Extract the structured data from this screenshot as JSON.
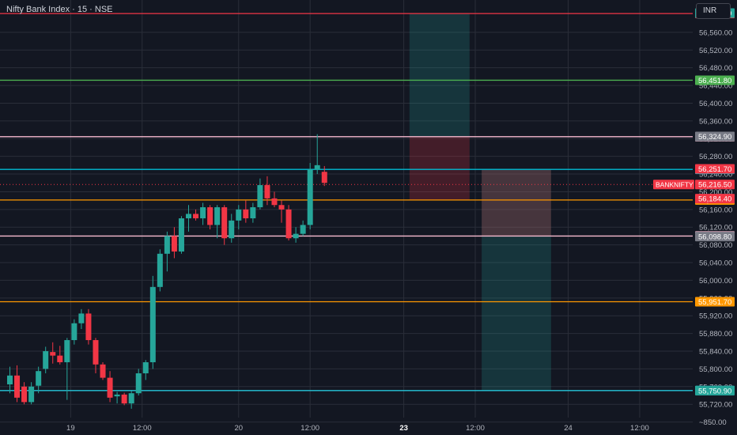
{
  "header": {
    "title": "Nifty Bank Index · 15 · NSE",
    "currency": "INR"
  },
  "colors": {
    "background": "#131722",
    "grid": "#2a2e39",
    "up": "#26a69a",
    "down": "#f23645",
    "axis_text": "#b2b5be"
  },
  "chart_data": {
    "type": "candlestick",
    "symbol": "BANKNIFTY",
    "y_axis_ticks": [
      "56,560.00",
      "56,520.00",
      "56,480.00",
      "56,440.00",
      "56,400.00",
      "56,360.00",
      "56,320.00",
      "56,280.00",
      "56,240.00",
      "56,200.00",
      "56,160.00",
      "56,120.00",
      "56,080.00",
      "56,040.00",
      "56,000.00",
      "55,960.00",
      "55,920.00",
      "55,880.00",
      "55,840.00",
      "55,800.00",
      "55,760.00",
      "55,720.00",
      "~850.00"
    ],
    "ylim": [
      55690,
      56633
    ],
    "x_axis_ticks": [
      {
        "label": "19",
        "idx": 8.5,
        "bold": false
      },
      {
        "label": "12:00",
        "idx": 18.5,
        "bold": false
      },
      {
        "label": "20",
        "idx": 32,
        "bold": false
      },
      {
        "label": "12:00",
        "idx": 42,
        "bold": false
      },
      {
        "label": "23",
        "idx": 55.1,
        "bold": true
      },
      {
        "label": "12:00",
        "idx": 65.1,
        "bold": false
      },
      {
        "label": "24",
        "idx": 78.1,
        "bold": false
      },
      {
        "label": "12:00",
        "idx": 88.1,
        "bold": false
      }
    ],
    "candles": [
      {
        "o": 55765,
        "h": 55805,
        "l": 55745,
        "c": 55785
      },
      {
        "o": 55785,
        "h": 55808,
        "l": 55725,
        "c": 55735
      },
      {
        "o": 55760,
        "h": 55770,
        "l": 55720,
        "c": 55725
      },
      {
        "o": 55725,
        "h": 55770,
        "l": 55720,
        "c": 55760
      },
      {
        "o": 55762,
        "h": 55805,
        "l": 55745,
        "c": 55795
      },
      {
        "o": 55800,
        "h": 55850,
        "l": 55790,
        "c": 55840
      },
      {
        "o": 55838,
        "h": 55860,
        "l": 55812,
        "c": 55830
      },
      {
        "o": 55830,
        "h": 55852,
        "l": 55810,
        "c": 55815
      },
      {
        "o": 55815,
        "h": 55870,
        "l": 55730,
        "c": 55865
      },
      {
        "o": 55865,
        "h": 55912,
        "l": 55855,
        "c": 55903
      },
      {
        "o": 55903,
        "h": 55935,
        "l": 55890,
        "c": 55925
      },
      {
        "o": 55925,
        "h": 55935,
        "l": 55855,
        "c": 55865
      },
      {
        "o": 55865,
        "h": 55870,
        "l": 55790,
        "c": 55810
      },
      {
        "o": 55810,
        "h": 55815,
        "l": 55775,
        "c": 55780
      },
      {
        "o": 55780,
        "h": 55795,
        "l": 55725,
        "c": 55735
      },
      {
        "o": 55738,
        "h": 55748,
        "l": 55722,
        "c": 55742
      },
      {
        "o": 55742,
        "h": 55746,
        "l": 55718,
        "c": 55722
      },
      {
        "o": 55722,
        "h": 55750,
        "l": 55710,
        "c": 55745
      },
      {
        "o": 55745,
        "h": 55800,
        "l": 55740,
        "c": 55790
      },
      {
        "o": 55790,
        "h": 55820,
        "l": 55775,
        "c": 55815
      },
      {
        "o": 55815,
        "h": 56010,
        "l": 55800,
        "c": 55985
      },
      {
        "o": 55985,
        "h": 56070,
        "l": 55975,
        "c": 56060
      },
      {
        "o": 56060,
        "h": 56110,
        "l": 56020,
        "c": 56100
      },
      {
        "o": 56100,
        "h": 56120,
        "l": 56050,
        "c": 56065
      },
      {
        "o": 56065,
        "h": 56145,
        "l": 56060,
        "c": 56140
      },
      {
        "o": 56140,
        "h": 56170,
        "l": 56110,
        "c": 56150
      },
      {
        "o": 56150,
        "h": 56160,
        "l": 56135,
        "c": 56140
      },
      {
        "o": 56140,
        "h": 56175,
        "l": 56125,
        "c": 56165
      },
      {
        "o": 56165,
        "h": 56170,
        "l": 56115,
        "c": 56125
      },
      {
        "o": 56125,
        "h": 56170,
        "l": 56095,
        "c": 56165
      },
      {
        "o": 56165,
        "h": 56170,
        "l": 56080,
        "c": 56095
      },
      {
        "o": 56095,
        "h": 56150,
        "l": 56085,
        "c": 56135
      },
      {
        "o": 56135,
        "h": 56170,
        "l": 56115,
        "c": 56160
      },
      {
        "o": 56160,
        "h": 56180,
        "l": 56130,
        "c": 56140
      },
      {
        "o": 56140,
        "h": 56175,
        "l": 56130,
        "c": 56165
      },
      {
        "o": 56165,
        "h": 56230,
        "l": 56160,
        "c": 56215
      },
      {
        "o": 56215,
        "h": 56235,
        "l": 56170,
        "c": 56185
      },
      {
        "o": 56185,
        "h": 56200,
        "l": 56165,
        "c": 56170
      },
      {
        "o": 56170,
        "h": 56180,
        "l": 56130,
        "c": 56160
      },
      {
        "o": 56160,
        "h": 56170,
        "l": 56090,
        "c": 56095
      },
      {
        "o": 56095,
        "h": 56120,
        "l": 56085,
        "c": 56105
      },
      {
        "o": 56105,
        "h": 56135,
        "l": 56100,
        "c": 56125
      },
      {
        "o": 56125,
        "h": 56265,
        "l": 56115,
        "c": 56250
      },
      {
        "o": 56250,
        "h": 56330,
        "l": 56240,
        "c": 56260
      },
      {
        "o": 56245,
        "h": 56258,
        "l": 56213,
        "c": 56220
      }
    ],
    "levels": [
      {
        "label": "56,602.45",
        "value": 56602.45,
        "line": "#f23645",
        "tag": "#f23645"
      },
      {
        "label": "56,451.80",
        "value": 56451.8,
        "line": "#4caf50",
        "tag": "#4caf50"
      },
      {
        "label": "56,324.35",
        "value": 56324.35,
        "line": "#f8bbd0",
        "tag": "#f8bbd0"
      },
      {
        "label": "56,250.50",
        "value": 56250.5,
        "line": "#00bcd4",
        "tag": "#00bcd4"
      },
      {
        "label": "56,181.40",
        "value": 56181.4,
        "line": "#ff9800",
        "tag": "#ff9800"
      },
      {
        "label": "56,100.00",
        "value": 56100.0,
        "line": "#f8bbd0",
        "tag": "#f8bbd0"
      },
      {
        "label": "55,951.70",
        "value": 55951.7,
        "line": "#ff9800",
        "tag": "#ff9800"
      },
      {
        "label": "55,751.10",
        "value": 55751.1,
        "line": "#26c6da",
        "tag": "#26c6da"
      }
    ],
    "price_tags": [
      {
        "label": "56,603.50",
        "value": 56603.5,
        "color": "#26a69a"
      },
      {
        "label": "56,324.90",
        "value": 56324.9,
        "color": "#787b86"
      },
      {
        "label": "56,251.70",
        "value": 56251.7,
        "color": "#f23645"
      },
      {
        "label": "56,216.50",
        "value": 56216.5,
        "color": "#f23645",
        "symbol": "BANKNIFTY"
      },
      {
        "label": "56,184.40",
        "value": 56184.4,
        "color": "#f23645"
      },
      {
        "label": "56,098.80",
        "value": 56098.8,
        "color": "#787b86"
      },
      {
        "label": "55,750.90",
        "value": 55750.9,
        "color": "#26a69a"
      }
    ],
    "positions": [
      {
        "x_from": 55.9,
        "x_to": 64.3,
        "entry": 56324.35,
        "target": 56603.5,
        "stop": 56181.4
      },
      {
        "x_from": 66.0,
        "x_to": 75.7,
        "entry": 56250.5,
        "target": 55751.1,
        "stop": 56100.0
      }
    ]
  }
}
